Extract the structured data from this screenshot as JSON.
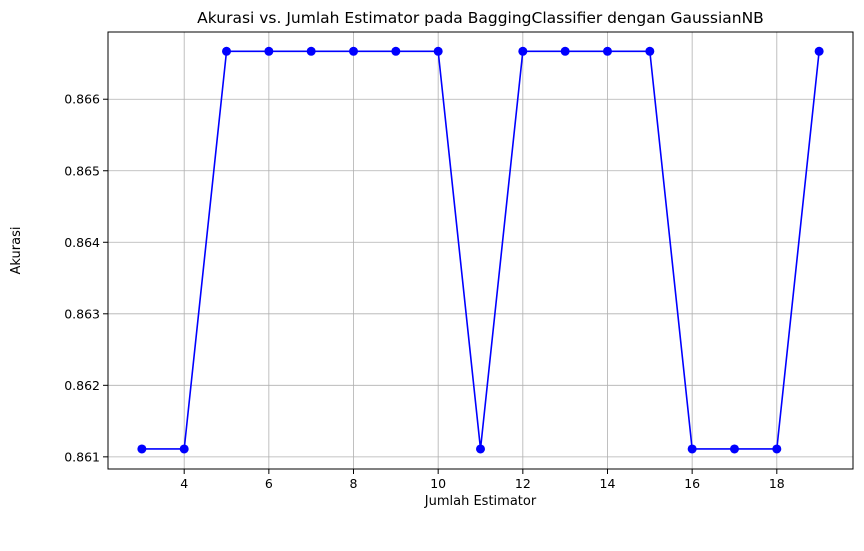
{
  "chart_data": {
    "type": "line",
    "title": "Akurasi vs. Jumlah Estimator pada BaggingClassifier dengan GaussianNB",
    "xlabel": "Jumlah Estimator",
    "ylabel": "Akurasi",
    "x": [
      3,
      4,
      5,
      6,
      7,
      8,
      9,
      10,
      11,
      12,
      13,
      14,
      15,
      16,
      17,
      18,
      19
    ],
    "series": [
      {
        "values": [
          0.86111,
          0.86111,
          0.86667,
          0.86667,
          0.86667,
          0.86667,
          0.86667,
          0.86667,
          0.86111,
          0.86667,
          0.86667,
          0.86667,
          0.86667,
          0.86111,
          0.86111,
          0.86111,
          0.86667
        ],
        "color": "#0000ff",
        "marker": "circle"
      }
    ],
    "xticks": [
      4,
      6,
      8,
      10,
      12,
      14,
      16,
      18
    ],
    "xtick_labels": [
      "4",
      "6",
      "8",
      "10",
      "12",
      "14",
      "16",
      "18"
    ],
    "yticks": [
      0.861,
      0.862,
      0.863,
      0.864,
      0.865,
      0.866
    ],
    "ytick_labels": [
      "0.861",
      "0.862",
      "0.863",
      "0.864",
      "0.865",
      "0.866"
    ],
    "xlim": [
      2.2,
      19.8
    ],
    "ylim": [
      0.86083,
      0.86694
    ],
    "grid": true,
    "legend": false
  }
}
